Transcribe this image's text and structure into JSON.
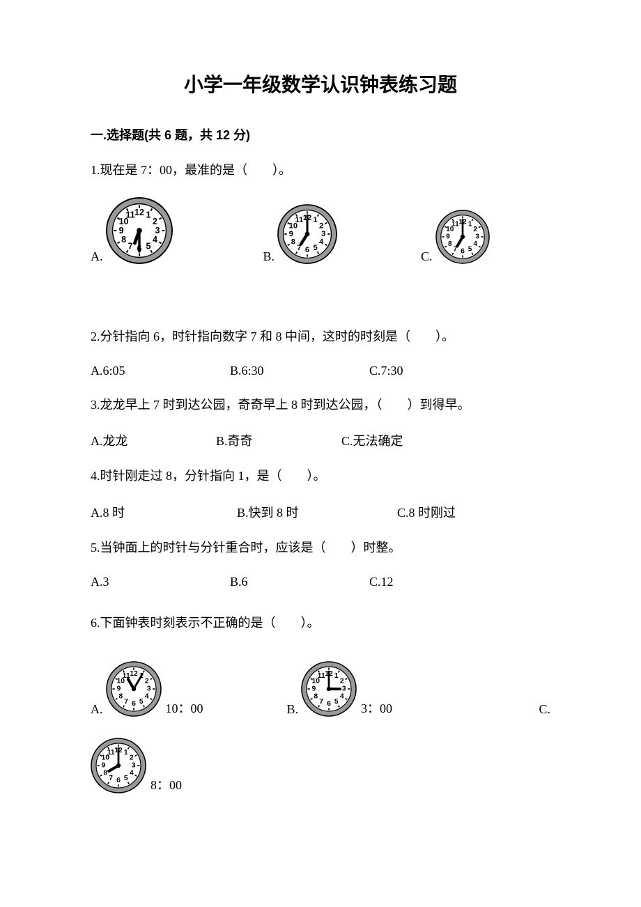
{
  "title": "小学一年级数学认识钟表练习题",
  "section1_head": "一.选择题(共 6 题，共 12 分)",
  "q1": "1.现在是 7：00，最准的是（　　）。",
  "q1_opts": {
    "A": "A.",
    "B": "B.",
    "C": "C."
  },
  "q1_clocks": {
    "A": {
      "hour_angle": 200,
      "minute_angle": 180,
      "size": 96
    },
    "B": {
      "hour_angle": 212,
      "minute_angle": 0,
      "size": 86
    },
    "C": {
      "hour_angle": 210,
      "minute_angle": 0,
      "size": 78
    }
  },
  "q2": "2.分针指向 6，时针指向数字 7 和 8 中间，这时的时刻是（　　）。",
  "q2_opts": {
    "A": "A.6:05",
    "B": "B.6:30",
    "C": "C.7:30"
  },
  "q3": "3.龙龙早上 7 时到达公园，奇奇早上 8 时到达公园，（　　）到得早。",
  "q3_opts": {
    "A": "A.龙龙",
    "B": "B.奇奇",
    "C": "C.无法确定"
  },
  "q4": "4.时针刚走过 8，分针指向 1，是（　　）。",
  "q4_opts": {
    "A": "A.8 时",
    "B": "B.快到 8 时",
    "C": "C.8 时刚过"
  },
  "q5": "5.当钟面上的时针与分针重合时，应该是（　　）时整。",
  "q5_opts": {
    "A": "A.3",
    "B": "B.6",
    "C": "C.12"
  },
  "q6": "6.下面钟表时刻表示不正确的是（　　）。",
  "q6_opts": {
    "A": {
      "letter": "A.",
      "label": "10：00",
      "clock": {
        "hour_angle": 330,
        "minute_angle": 30,
        "size": 80
      }
    },
    "B": {
      "letter": "B.",
      "label": "3：00",
      "clock": {
        "hour_angle": 90,
        "minute_angle": 0,
        "size": 80
      }
    },
    "C": {
      "letter": "C.",
      "label": "8：00",
      "clock": {
        "hour_angle": 240,
        "minute_angle": 0,
        "size": 80
      }
    }
  },
  "style": {
    "text_color": "#000000",
    "bg": "#ffffff",
    "clock_face_fill": "#ffffff",
    "clock_stroke": "#000000",
    "clock_rim_shade": "#9a9a9a"
  }
}
